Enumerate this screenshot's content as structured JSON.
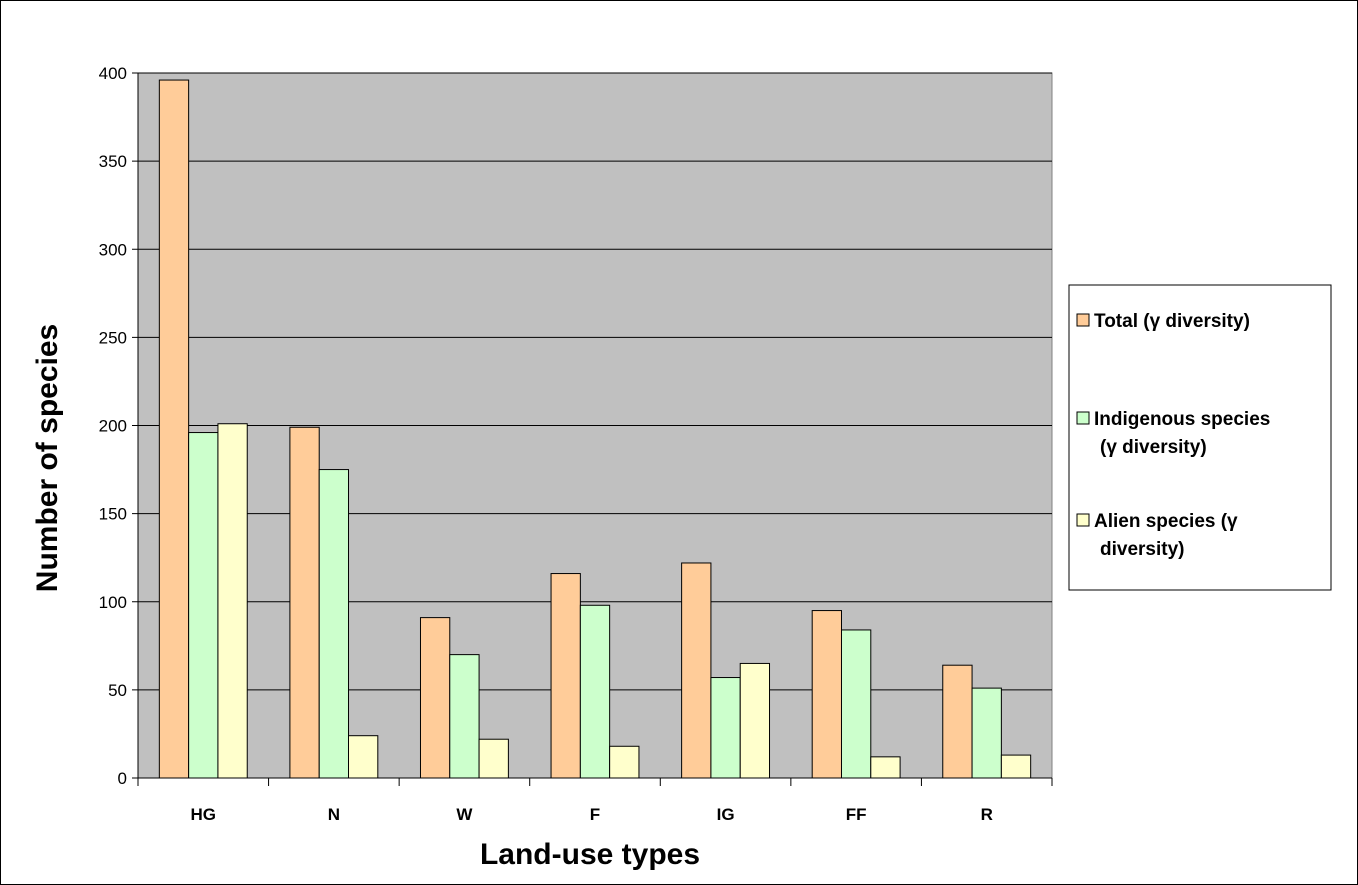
{
  "chart_data": {
    "type": "bar",
    "title": "",
    "xlabel": "Land-use types",
    "ylabel": "Number of species",
    "ylim": [
      0,
      400
    ],
    "yticks": [
      0,
      50,
      100,
      150,
      200,
      250,
      300,
      350,
      400
    ],
    "categories": [
      "HG",
      "N",
      "W",
      "F",
      "IG",
      "FF",
      "R"
    ],
    "series": [
      {
        "name": "Total (γ diversity)",
        "color": "#FFCC99",
        "values": [
          396,
          199,
          91,
          116,
          122,
          95,
          64
        ]
      },
      {
        "name": "Indigenous species (γ diversity)",
        "color": "#CCFFCC",
        "values": [
          196,
          175,
          70,
          98,
          57,
          84,
          51
        ]
      },
      {
        "name": "Alien species (γ diversity)",
        "color": "#FFFFCC",
        "values": [
          201,
          24,
          22,
          18,
          65,
          12,
          13
        ]
      }
    ],
    "legend_lines": [
      [
        "Total (γ diversity)"
      ],
      [
        "Indigenous species",
        "(γ diversity)"
      ],
      [
        "Alien species (γ",
        "diversity)"
      ]
    ],
    "grid": true,
    "legend_position": "right",
    "plot_background": "#C0C0C0"
  }
}
